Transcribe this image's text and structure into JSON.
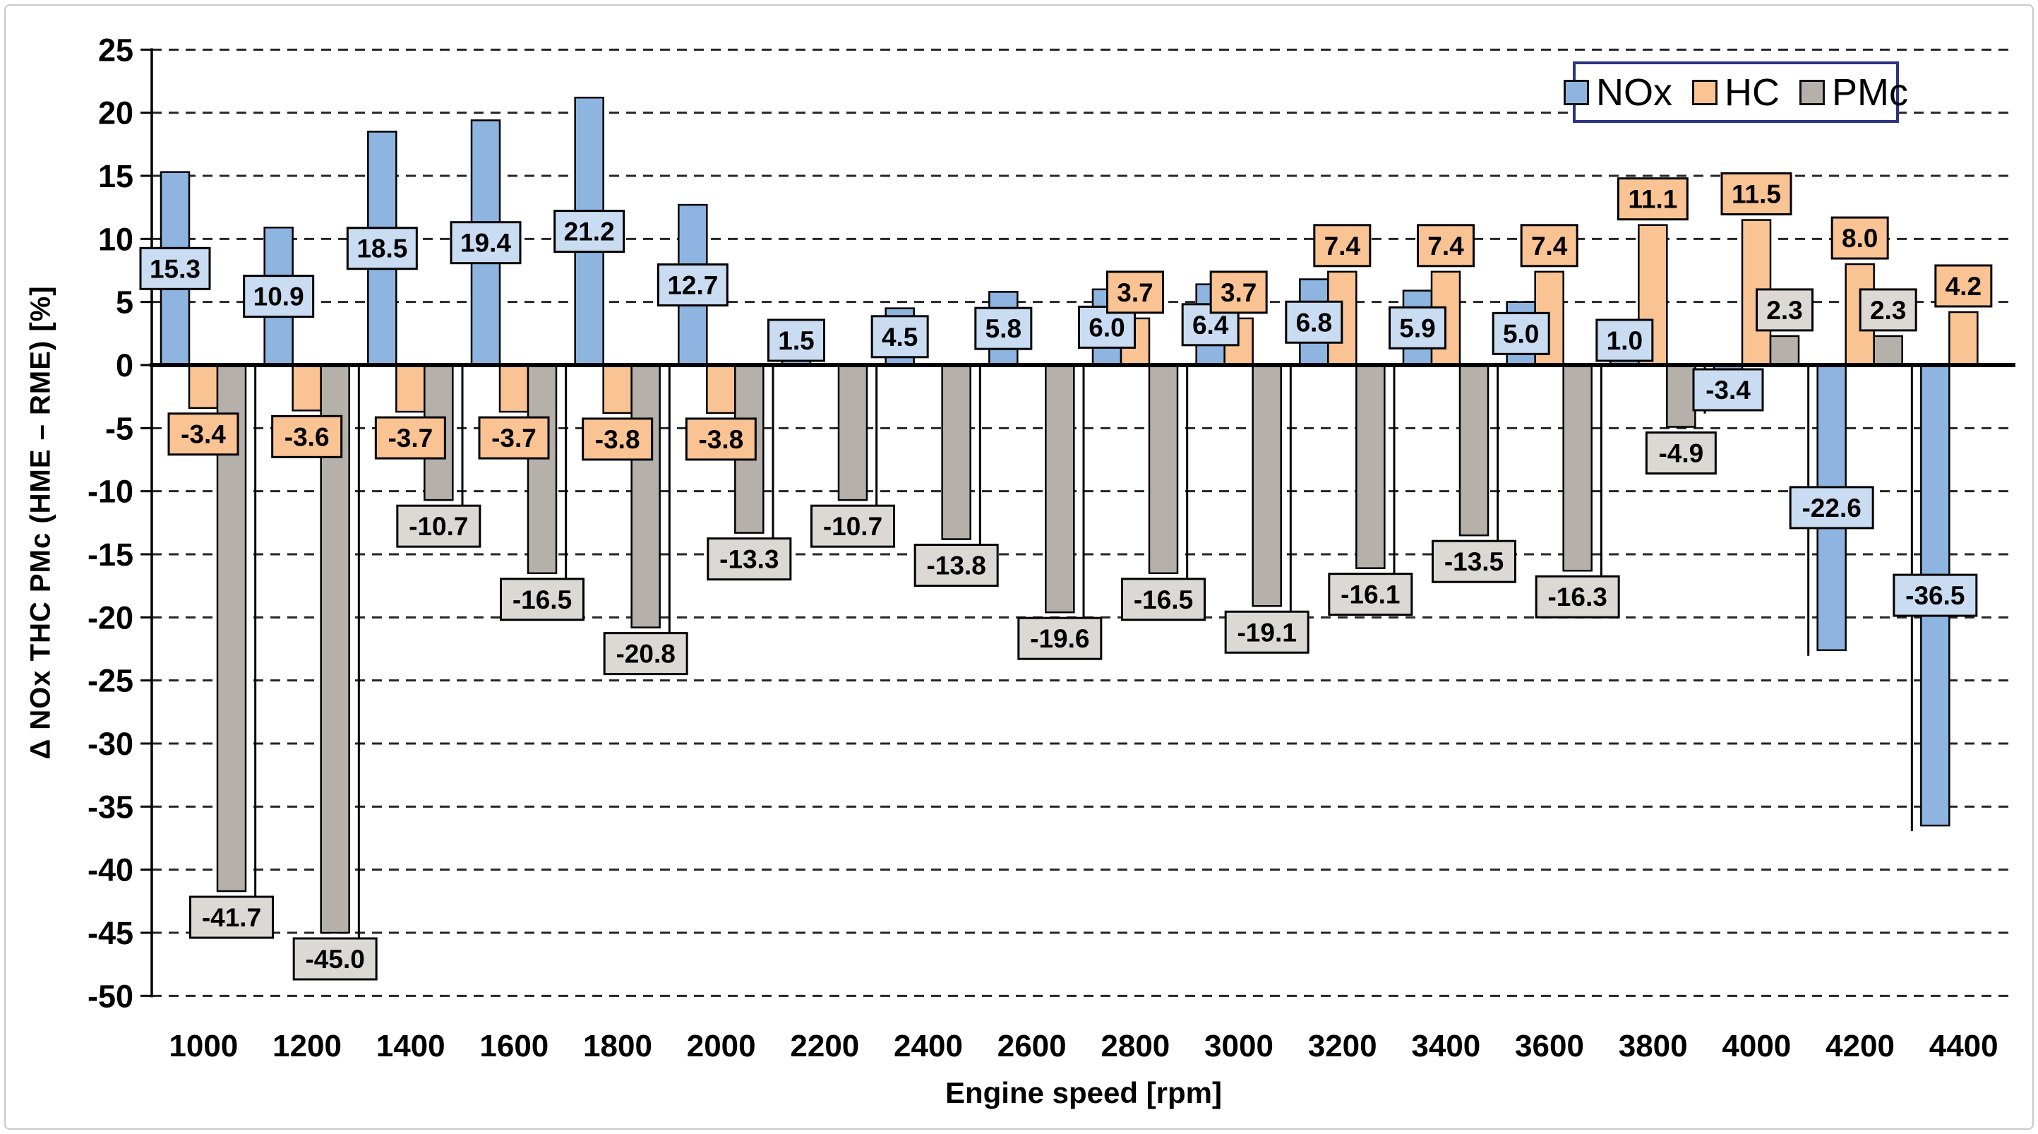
{
  "chart_data": {
    "type": "bar",
    "title": "",
    "xlabel": "Engine speed [rpm]",
    "ylabel": "Δ NOx THC PMc  (HME – RME) [%]",
    "categories": [
      1000,
      1200,
      1400,
      1600,
      1800,
      2000,
      2200,
      2400,
      2600,
      2800,
      3000,
      3200,
      3400,
      3600,
      3800,
      4000,
      4200,
      4400
    ],
    "ylim": [
      -50,
      25
    ],
    "ytick_step": 5,
    "grid": "horizontal-dashed",
    "legend_position": "top-right-inside",
    "zero_axis": "solid-black",
    "series": [
      {
        "name": "NOx",
        "color": "#8EB4E0",
        "label_bg": "#C9DCF2",
        "values": [
          15.3,
          10.9,
          18.5,
          19.4,
          21.2,
          12.7,
          1.5,
          4.5,
          5.8,
          6.0,
          6.4,
          6.8,
          5.9,
          5.0,
          1.0,
          -3.4,
          -22.6,
          -36.5
        ]
      },
      {
        "name": "HC",
        "color": "#FAC393",
        "label_bg": "#FAC393",
        "values": [
          -3.4,
          -3.6,
          -3.7,
          -3.7,
          -3.8,
          -3.8,
          null,
          null,
          null,
          3.7,
          3.7,
          7.4,
          7.4,
          7.4,
          11.1,
          11.5,
          8.0,
          4.2
        ]
      },
      {
        "name": "PMc",
        "color": "#B5B0A9",
        "label_bg": "#DCD9D5",
        "values": [
          -41.7,
          -45.0,
          -10.7,
          -16.5,
          -20.8,
          -13.3,
          -10.7,
          -13.8,
          -19.6,
          -16.5,
          -19.1,
          -16.1,
          -13.5,
          -16.3,
          -4.9,
          2.3,
          2.3,
          null
        ]
      }
    ]
  }
}
